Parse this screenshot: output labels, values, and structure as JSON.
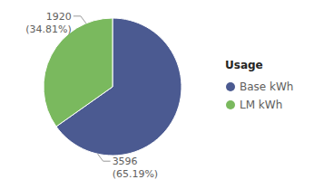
{
  "chart_data": {
    "type": "pie",
    "legend_title": "Usage",
    "legend": "right",
    "categories": [
      "Base kWh",
      "LM kWh"
    ],
    "values": [
      3596,
      1920
    ],
    "percentages": [
      65.19,
      34.81
    ],
    "percentage_labels": [
      "(65.19%)",
      "(34.81%)"
    ],
    "colors": [
      "#4b5a91",
      "#7ab95e"
    ],
    "data_labels": true
  }
}
